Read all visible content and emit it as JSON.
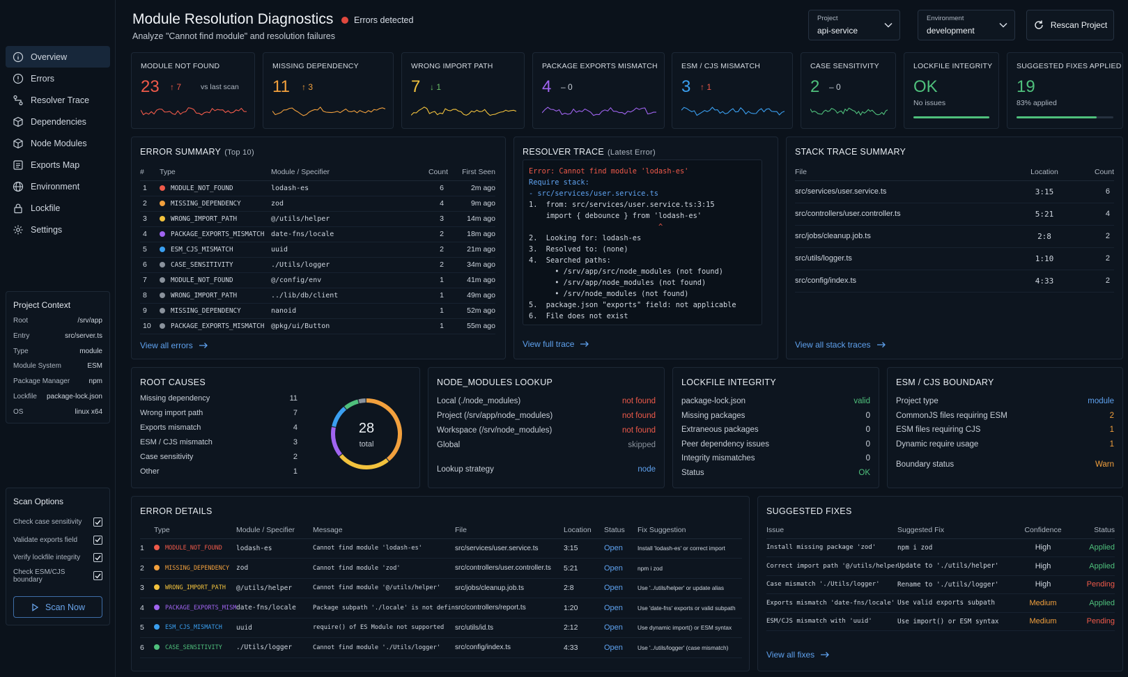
{
  "nav": [
    {
      "label": "Overview",
      "icon": "info-icon"
    },
    {
      "label": "Errors",
      "icon": "alert-circle-icon"
    },
    {
      "label": "Resolver Trace",
      "icon": "route-icon"
    },
    {
      "label": "Dependencies",
      "icon": "package-icon"
    },
    {
      "label": "Node Modules",
      "icon": "cube-icon"
    },
    {
      "label": "Exports Map",
      "icon": "map-icon"
    },
    {
      "label": "Environment",
      "icon": "globe-icon"
    },
    {
      "label": "Lockfile",
      "icon": "lock-icon"
    },
    {
      "label": "Settings",
      "icon": "gear-icon"
    }
  ],
  "project_context": {
    "title": "Project Context",
    "items": [
      [
        "Root",
        "/srv/app"
      ],
      [
        "Entry",
        "src/server.ts"
      ],
      [
        "Type",
        "module"
      ],
      [
        "Module System",
        "ESM"
      ],
      [
        "Package Manager",
        "npm"
      ],
      [
        "Lockfile",
        "package-lock.json"
      ],
      [
        "OS",
        "linux x64"
      ]
    ]
  },
  "scan_options": {
    "title": "Scan Options",
    "items": [
      "Check case sensitivity",
      "Validate exports field",
      "Verify lockfile integrity",
      "Check ESM/CJS boundary"
    ],
    "button": "Scan Now"
  },
  "header": {
    "title": "Module Resolution Diagnostics",
    "badge": "Errors detected",
    "subtitle": "Analyze \"Cannot find module\" and resolution failures",
    "project_label": "Project",
    "project_value": "api-service",
    "env_label": "Environment",
    "env_value": "development",
    "rescan": "Rescan Project"
  },
  "metrics": [
    {
      "title": "MODULE NOT FOUND",
      "value": "23",
      "color": "#ef5a4a",
      "delta": "↑ 7",
      "delta_color": "#ef5a4a",
      "note": "vs last scan"
    },
    {
      "title": "MISSING DEPENDENCY",
      "value": "11",
      "color": "#f2a03d",
      "delta": "↑ 3",
      "delta_color": "#f2a03d"
    },
    {
      "title": "WRONG IMPORT PATH",
      "value": "7",
      "color": "#f2c23d",
      "delta": "↓ 1",
      "delta_color": "#6cc067"
    },
    {
      "title": "PACKAGE EXPORTS MISMATCH",
      "value": "4",
      "color": "#a064f0",
      "delta": "– 0",
      "delta_color": "#c7ced7"
    },
    {
      "title": "ESM / CJS MISMATCH",
      "value": "3",
      "color": "#3a9ff0",
      "delta": "↑ 1",
      "delta_color": "#ef5a4a"
    },
    {
      "title": "CASE SENSITIVITY",
      "value": "2",
      "color": "#4fc07c",
      "delta": "– 0",
      "delta_color": "#c7ced7"
    },
    {
      "title": "LOCKFILE INTEGRITY",
      "value": "OK",
      "color": "#4fc07c",
      "note": "No issues",
      "progress": 1.0
    },
    {
      "title": "SUGGESTED FIXES APPLIED",
      "value": "19",
      "color": "#4fc07c",
      "note": "83% applied",
      "progress": 0.83
    }
  ],
  "error_summary": {
    "title": "ERROR SUMMARY",
    "sub": "(Top 10)",
    "headers": [
      "#",
      "Type",
      "Module / Specifier",
      "Count",
      "First Seen"
    ],
    "rows": [
      [
        "1",
        "MODULE_NOT_FOUND",
        "lodash-es",
        "6",
        "2m ago",
        "#ef5a4a"
      ],
      [
        "2",
        "MISSING_DEPENDENCY",
        "zod",
        "4",
        "9m ago",
        "#f2a03d"
      ],
      [
        "3",
        "WRONG_IMPORT_PATH",
        "@/utils/helper",
        "3",
        "14m ago",
        "#f2c23d"
      ],
      [
        "4",
        "PACKAGE_EXPORTS_MISMATCH",
        "date-fns/locale",
        "2",
        "18m ago",
        "#a064f0"
      ],
      [
        "5",
        "ESM_CJS_MISMATCH",
        "uuid",
        "2",
        "21m ago",
        "#3a9ff0"
      ],
      [
        "6",
        "CASE_SENSITIVITY",
        "./Utils/logger",
        "2",
        "34m ago",
        "#8a929c"
      ],
      [
        "7",
        "MODULE_NOT_FOUND",
        "@/config/env",
        "1",
        "41m ago",
        "#8a929c"
      ],
      [
        "8",
        "WRONG_IMPORT_PATH",
        "../lib/db/client",
        "1",
        "49m ago",
        "#8a929c"
      ],
      [
        "9",
        "MISSING_DEPENDENCY",
        "nanoid",
        "1",
        "52m ago",
        "#8a929c"
      ],
      [
        "10",
        "PACKAGE_EXPORTS_MISMATCH",
        "@pkg/ui/Button",
        "1",
        "55m ago",
        "#8a929c"
      ]
    ],
    "link": "View all errors"
  },
  "resolver": {
    "title": "RESOLVER TRACE",
    "sub": "(Latest Error)",
    "link": "View full trace",
    "lines": [
      [
        "Error: Cannot find module 'lodash-es'",
        "#ef5a4a"
      ],
      [
        "Require stack:",
        "#5fa2ef"
      ],
      [
        "- src/services/user.service.ts",
        "#5fa2ef"
      ],
      [
        "1.  from: src/services/user.service.ts:3:15",
        "#d0d7e0"
      ],
      [
        "    import { debounce } from 'lodash-es'",
        "#d0d7e0"
      ],
      [
        "                              ^",
        "#ef5a4a"
      ],
      [
        "2.  Looking for: lodash-es",
        "#d0d7e0"
      ],
      [
        "3.  Resolved to: (none)",
        "#d0d7e0"
      ],
      [
        "4.  Searched paths:",
        "#d0d7e0"
      ],
      [
        "      • /srv/app/src/node_modules (not found)",
        "#d0d7e0"
      ],
      [
        "      • /srv/app/node_modules (not found)",
        "#d0d7e0"
      ],
      [
        "      • /srv/node_modules (not found)",
        "#d0d7e0"
      ],
      [
        "5.  package.json \"exports\" field: not applicable",
        "#d0d7e0"
      ],
      [
        "6.  File does not exist",
        "#d0d7e0"
      ]
    ]
  },
  "stack_summary": {
    "title": "STACK TRACE SUMMARY",
    "headers": [
      "File",
      "Location",
      "Count"
    ],
    "rows": [
      [
        "src/services/user.service.ts",
        "3:15",
        "6"
      ],
      [
        "src/controllers/user.controller.ts",
        "5:21",
        "4"
      ],
      [
        "src/jobs/cleanup.job.ts",
        "2:8",
        "2"
      ],
      [
        "src/utils/logger.ts",
        "1:10",
        "2"
      ],
      [
        "src/config/index.ts",
        "4:33",
        "2"
      ]
    ],
    "link": "View all stack traces"
  },
  "root_causes": {
    "title": "ROOT CAUSES",
    "items": [
      [
        "Missing dependency",
        "11",
        "#f2a03d"
      ],
      [
        "Wrong import path",
        "7",
        "#f2c23d"
      ],
      [
        "Exports mismatch",
        "4",
        "#a064f0"
      ],
      [
        "ESM / CJS mismatch",
        "3",
        "#3a9ff0"
      ],
      [
        "Case sensitivity",
        "2",
        "#4fc07c"
      ],
      [
        "Other",
        "1",
        "#8a929c"
      ]
    ],
    "total": "28",
    "total_label": "total"
  },
  "node_modules": {
    "title": "NODE_MODULES LOOKUP",
    "rows": [
      [
        "Local (./node_modules)",
        "not found",
        "#ef5a4a"
      ],
      [
        "Project (/srv/app/node_modules)",
        "not found",
        "#ef5a4a"
      ],
      [
        "Workspace (/srv/node_modules)",
        "not found",
        "#ef5a4a"
      ],
      [
        "Global",
        "skipped",
        "#8a929c"
      ]
    ],
    "strategy_label": "Lookup strategy",
    "strategy_value": "node",
    "strategy_color": "#5fa2ef"
  },
  "lockfile": {
    "title": "LOCKFILE INTEGRITY",
    "rows": [
      [
        "package-lock.json",
        "valid",
        "#4fc07c"
      ],
      [
        "Missing packages",
        "0",
        "#d0d7e0"
      ],
      [
        "Extraneous packages",
        "0",
        "#d0d7e0"
      ],
      [
        "Peer dependency issues",
        "0",
        "#d0d7e0"
      ],
      [
        "Integrity mismatches",
        "0",
        "#d0d7e0"
      ],
      [
        "Status",
        "OK",
        "#4fc07c"
      ]
    ]
  },
  "boundary": {
    "title": "ESM / CJS BOUNDARY",
    "rows": [
      [
        "Project type",
        "module",
        "#5fa2ef"
      ],
      [
        "CommonJS files requiring ESM",
        "2",
        "#f2a03d"
      ],
      [
        "ESM files requiring CJS",
        "1",
        "#f2a03d"
      ],
      [
        "Dynamic require usage",
        "1",
        "#f2a03d"
      ]
    ],
    "status_label": "Boundary status",
    "status_value": "Warn",
    "status_color": "#f2a03d"
  },
  "error_details": {
    "title": "ERROR DETAILS",
    "headers": [
      "",
      "Type",
      "Module / Specifier",
      "Message",
      "File",
      "Location",
      "Status",
      "Fix Suggestion"
    ],
    "rows": [
      [
        "1",
        "MODULE_NOT_FOUND",
        "lodash-es",
        "Cannot find module 'lodash-es'",
        "src/services/user.service.ts",
        "3:15",
        "Open",
        "Install 'lodash-es' or correct import",
        "#ef5a4a"
      ],
      [
        "2",
        "MISSING_DEPENDENCY",
        "zod",
        "Cannot find module 'zod'",
        "src/controllers/user.controller.ts",
        "5:21",
        "Open",
        "npm i zod",
        "#f2a03d"
      ],
      [
        "3",
        "WRONG_IMPORT_PATH",
        "@/utils/helper",
        "Cannot find module '@/utils/helper'",
        "src/jobs/cleanup.job.ts",
        "2:8",
        "Open",
        "Use '../utils/helper' or update alias",
        "#f2c23d"
      ],
      [
        "4",
        "PACKAGE_EXPORTS_MISMATCH",
        "date-fns/locale",
        "Package subpath './locale' is not defined",
        "src/controllers/report.ts",
        "1:20",
        "Open",
        "Use 'date-fns' exports or valid subpath",
        "#a064f0"
      ],
      [
        "5",
        "ESM_CJS_MISMATCH",
        "uuid",
        "require() of ES Module not supported",
        "src/utils/id.ts",
        "2:12",
        "Open",
        "Use dynamic import() or ESM syntax",
        "#3a9ff0"
      ],
      [
        "6",
        "CASE_SENSITIVITY",
        "./Utils/logger",
        "Cannot find module './Utils/logger'",
        "src/config/index.ts",
        "4:33",
        "Open",
        "Use '../utils/logger' (case mismatch)",
        "#4fc07c"
      ]
    ]
  },
  "fixes": {
    "title": "SUGGESTED FIXES",
    "headers": [
      "Issue",
      "Suggested Fix",
      "Confidence",
      "Status"
    ],
    "rows": [
      [
        "Install missing package 'zod'",
        "npm i zod",
        "High",
        "Applied",
        "#d0d7e0",
        "#4fc07c"
      ],
      [
        "Correct import path '@/utils/helper'",
        "Update to './utils/helper'",
        "High",
        "Applied",
        "#d0d7e0",
        "#4fc07c"
      ],
      [
        "Case mismatch './Utils/logger'",
        "Rename to './utils/logger'",
        "High",
        "Pending",
        "#d0d7e0",
        "#ef5a4a"
      ],
      [
        "Exports mismatch 'date-fns/locale'",
        "Use valid exports subpath",
        "Medium",
        "Applied",
        "#f2a03d",
        "#4fc07c"
      ],
      [
        "ESM/CJS mismatch with 'uuid'",
        "Use import() or ESM syntax",
        "Medium",
        "Pending",
        "#f2a03d",
        "#ef5a4a"
      ]
    ],
    "link": "View all fixes"
  }
}
